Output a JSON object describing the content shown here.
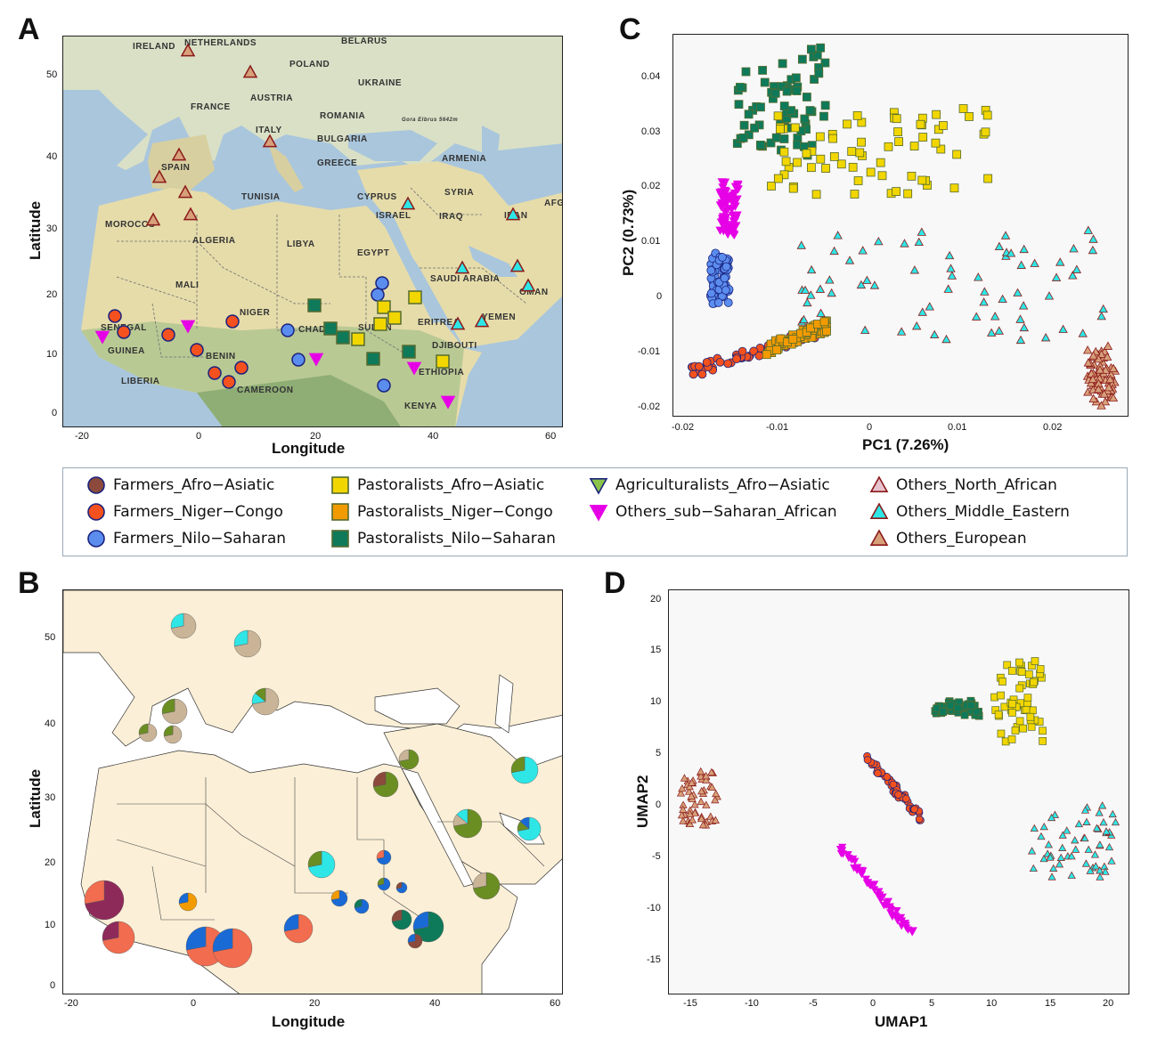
{
  "panels": {
    "a": {
      "letter": "A",
      "xlabel": "Longitude",
      "ylabel": "Latitude",
      "xticks": [
        "-20",
        "0",
        "20",
        "40",
        "60"
      ],
      "yticks": [
        "50",
        "40",
        "30",
        "20",
        "10",
        "0"
      ],
      "places": [
        "IRELAND",
        "NETHERLANDS",
        "BELARUS",
        "POLAND",
        "UKRAINE",
        "AUSTRIA",
        "FRANCE",
        "ROMANIA",
        "ITALY",
        "BULGARIA",
        "SPAIN",
        "GREECE",
        "ARMENIA",
        "TUNISIA",
        "CYPRUS",
        "SYRIA",
        "MOROCCO",
        "ISRAEL",
        "IRAQ",
        "ALGERIA",
        "LIBYA",
        "EGYPT",
        "SAUDI ARABIA",
        "OMAN",
        "MALI",
        "NIGER",
        "SENEGAL",
        "SUDAN",
        "ERITREA",
        "YEMEN",
        "GUINEA",
        "BENIN",
        "DJIBOUTI",
        "LIBERIA",
        "ETHIOPIA",
        "CAMEROON",
        "KENYA",
        "CHAD",
        "IRAN",
        "AFG"
      ],
      "peak_label": "Gora Elbrus\n5642m"
    },
    "b": {
      "letter": "B",
      "xlabel": "Longitude",
      "ylabel": "Latitude",
      "xticks": [
        "-20",
        "0",
        "20",
        "40",
        "60"
      ],
      "yticks": [
        "50",
        "40",
        "30",
        "20",
        "10",
        "0"
      ]
    },
    "c": {
      "letter": "C",
      "xlabel": "PC1 (7.26%)",
      "ylabel": "PC2 (0.73%)",
      "xticks": [
        "-0.02",
        "-0.01",
        "0",
        "0.01",
        "0.02"
      ],
      "yticks": [
        "0.04",
        "0.03",
        "0.02",
        "0.01",
        "0",
        "-0.01",
        "-0.02"
      ]
    },
    "d": {
      "letter": "D",
      "xlabel": "UMAP1",
      "ylabel": "UMAP2",
      "xticks": [
        "-15",
        "-10",
        "-5",
        "0",
        "5",
        "10",
        "15",
        "20"
      ],
      "yticks": [
        "20",
        "15",
        "10",
        "5",
        "0",
        "-5",
        "-10",
        "-15"
      ]
    }
  },
  "legend": [
    {
      "label": "Farmers_Afro−Asiatic",
      "shape": "circle",
      "fill": "#8b4a3c",
      "stroke": "#1a237e"
    },
    {
      "label": "Farmers_Niger−Congo",
      "shape": "circle",
      "fill": "#f4511e",
      "stroke": "#1a237e"
    },
    {
      "label": "Farmers_Nilo−Saharan",
      "shape": "circle",
      "fill": "#5b8def",
      "stroke": "#1a237e"
    },
    {
      "label": "Pastoralists_Afro−Asiatic",
      "shape": "square",
      "fill": "#f2d600",
      "stroke": "#556b2f"
    },
    {
      "label": "Pastoralists_Niger−Congo",
      "shape": "square",
      "fill": "#f29b00",
      "stroke": "#556b2f"
    },
    {
      "label": "Pastoralists_Nilo−Saharan",
      "shape": "square",
      "fill": "#0f7a5a",
      "stroke": "#556b2f"
    },
    {
      "label": "Agriculturalists_Afro−Asiatic",
      "shape": "tri-down",
      "fill": "#8bc34a",
      "stroke": "#1a237e"
    },
    {
      "label": "Others_sub−Saharan_African",
      "shape": "tri-down",
      "fill": "#e600e6",
      "stroke": "#e600e6"
    },
    {
      "label": "Others_North_African",
      "shape": "tri-up",
      "fill": "#e7c3cf",
      "stroke": "#8b1a1a"
    },
    {
      "label": "Others_Middle_Eastern",
      "shape": "tri-up",
      "fill": "#2ee6e6",
      "stroke": "#8b1a1a"
    },
    {
      "label": "Others_European",
      "shape": "tri-up",
      "fill": "#d7a07a",
      "stroke": "#8b1a1a"
    }
  ],
  "chart_data": [
    {
      "panel": "C",
      "type": "scatter",
      "xlabel": "PC1 (7.26%)",
      "ylabel": "PC2 (0.73%)",
      "xlim": [
        -0.0225,
        0.0265
      ],
      "ylim": [
        -0.0215,
        0.0455
      ],
      "clusters": [
        {
          "group": "Farmers_Niger−Congo",
          "x": [
            -0.0205,
            -0.006
          ],
          "y": [
            -0.0135,
            -0.006
          ]
        },
        {
          "group": "Pastoralists_Niger−Congo",
          "x": [
            -0.0125,
            -0.006
          ],
          "y": [
            -0.0095,
            -0.0055
          ]
        },
        {
          "group": "Farmers_Nilo−Saharan",
          "x": [
            -0.0185,
            -0.0165
          ],
          "y": [
            -0.001,
            0.007
          ]
        },
        {
          "group": "Pastoralists_Nilo−Saharan",
          "x": [
            -0.016,
            -0.006
          ],
          "y": [
            0.025,
            0.043
          ]
        },
        {
          "group": "Pastoralists_Afro−Asiatic",
          "x": [
            -0.012,
            0.012
          ],
          "y": [
            0.018,
            0.033
          ]
        },
        {
          "group": "Others_Middle_Eastern",
          "x": [
            -0.01,
            0.024
          ],
          "y": [
            -0.008,
            0.011
          ]
        },
        {
          "group": "Others_European",
          "x": [
            0.022,
            0.025
          ],
          "y": [
            -0.019,
            -0.01
          ]
        },
        {
          "group": "Others_sub−Saharan_African",
          "x": [
            -0.0175,
            -0.0155
          ],
          "y": [
            0.011,
            0.019
          ]
        }
      ]
    },
    {
      "panel": "D",
      "type": "scatter",
      "xlabel": "UMAP1",
      "ylabel": "UMAP2",
      "xlim": [
        -17,
        21
      ],
      "ylim": [
        -18.5,
        21
      ],
      "clusters": [
        {
          "group": "Farmers_Niger−Congo",
          "x": [
            -1,
            4
          ],
          "y": [
            -1.5,
            5
          ]
        },
        {
          "group": "Others_sub−Saharan_African",
          "x": [
            -3,
            3
          ],
          "y": [
            -12.5,
            -4
          ]
        },
        {
          "group": "Others_Middle_Eastern",
          "x": [
            13,
            20
          ],
          "y": [
            -7,
            0
          ]
        },
        {
          "group": "Others_European",
          "x": [
            -16,
            -13
          ],
          "y": [
            -2,
            3.5
          ]
        },
        {
          "group": "Pastoralists_Afro−Asiatic",
          "x": [
            10,
            14
          ],
          "y": [
            6,
            14
          ]
        },
        {
          "group": "Pastoralists_Nilo−Saharan",
          "x": [
            5,
            8.5
          ],
          "y": [
            9,
            10
          ]
        }
      ]
    }
  ]
}
